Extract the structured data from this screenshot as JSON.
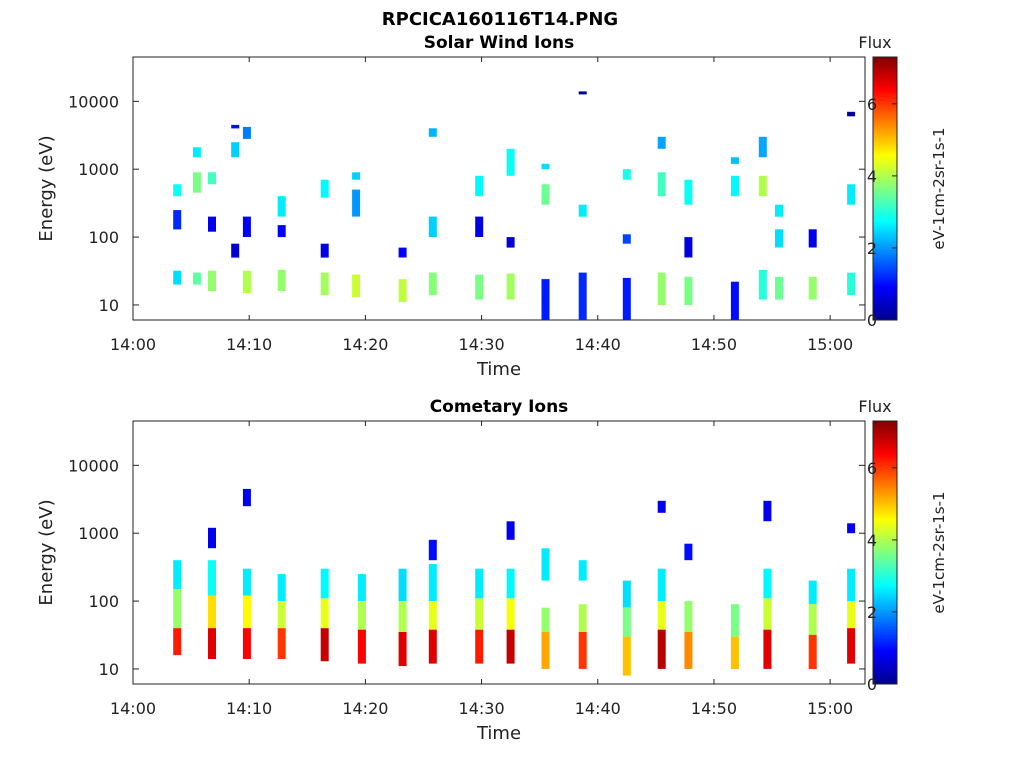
{
  "figure": {
    "title": "RPCICA160116T14.PNG"
  },
  "chart_data": [
    {
      "type": "heatmap",
      "title": "Solar Wind Ions",
      "xlabel": "Time",
      "ylabel": "Energy (eV)",
      "yscale": "log",
      "xlim": [
        "14:00",
        "15:03"
      ],
      "ylim": [
        6,
        45000
      ],
      "x_ticks": [
        "14:00",
        "14:10",
        "14:20",
        "14:30",
        "14:40",
        "14:50",
        "15:00"
      ],
      "y_ticks": [
        "10",
        "100",
        "1000",
        "10000"
      ],
      "colorbar": {
        "label": "Flux",
        "unit": "eV-1cm-2sr-1s-1",
        "ticks": [
          "0",
          "2",
          "4",
          "6"
        ],
        "range": [
          0,
          7.3
        ],
        "colormap": "jet"
      },
      "columns": [
        {
          "t": "14:03.8",
          "cells": [
            [
              20,
              32,
              2.5
            ],
            [
              130,
              250,
              1.2
            ],
            [
              400,
              600,
              2.8
            ]
          ]
        },
        {
          "t": "14:05.5",
          "cells": [
            [
              450,
              900,
              3.6
            ],
            [
              1500,
              2100,
              2.6
            ],
            [
              20,
              30,
              3.4
            ]
          ]
        },
        {
          "t": "14:06.8",
          "cells": [
            [
              16,
              32,
              3.8
            ],
            [
              120,
              200,
              0.8
            ],
            [
              600,
              900,
              3.2
            ]
          ]
        },
        {
          "t": "14:08.8",
          "cells": [
            [
              1500,
              2500,
              2.4
            ],
            [
              4000,
              4500,
              1.0
            ],
            [
              50,
              80,
              0.6
            ]
          ]
        },
        {
          "t": "14:09.8",
          "cells": [
            [
              15,
              32,
              4.0
            ],
            [
              100,
              200,
              0.9
            ],
            [
              2800,
              4200,
              1.8
            ]
          ]
        },
        {
          "t": "14:12.8",
          "cells": [
            [
              16,
              33,
              3.8
            ],
            [
              200,
              400,
              2.6
            ],
            [
              100,
              150,
              0.9
            ]
          ]
        },
        {
          "t": "14:16.5",
          "cells": [
            [
              14,
              30,
              3.9
            ],
            [
              50,
              80,
              0.7
            ],
            [
              380,
              700,
              2.7
            ]
          ]
        },
        {
          "t": "14:19.2",
          "cells": [
            [
              13,
              28,
              4.2
            ],
            [
              200,
              500,
              2.0
            ],
            [
              700,
              900,
              2.4
            ]
          ]
        },
        {
          "t": "14:23.2",
          "cells": [
            [
              11,
              24,
              4.1
            ],
            [
              50,
              70,
              0.9
            ]
          ]
        },
        {
          "t": "14:25.8",
          "cells": [
            [
              14,
              30,
              3.7
            ],
            [
              3000,
              4000,
              2.2
            ],
            [
              100,
              200,
              2.4
            ]
          ]
        },
        {
          "t": "14:29.8",
          "cells": [
            [
              12,
              28,
              3.6
            ],
            [
              100,
              200,
              0.7
            ],
            [
              400,
              800,
              2.7
            ]
          ]
        },
        {
          "t": "14:32.5",
          "cells": [
            [
              12,
              29,
              3.9
            ],
            [
              800,
              2000,
              2.8
            ],
            [
              70,
              100,
              0.6
            ]
          ]
        },
        {
          "t": "14:35.5",
          "cells": [
            [
              6,
              24,
              1.1
            ],
            [
              300,
              600,
              3.5
            ],
            [
              1000,
              1200,
              2.5
            ]
          ]
        },
        {
          "t": "14:38.7",
          "cells": [
            [
              6,
              30,
              1.2
            ],
            [
              14000,
              14000,
              0.2
            ],
            [
              200,
              300,
              2.6
            ]
          ]
        },
        {
          "t": "14:42.5",
          "cells": [
            [
              6,
              25,
              1.1
            ],
            [
              80,
              110,
              1.4
            ],
            [
              700,
              1000,
              2.9
            ]
          ]
        },
        {
          "t": "14:45.5",
          "cells": [
            [
              10,
              30,
              3.8
            ],
            [
              2000,
              3000,
              2.1
            ],
            [
              400,
              900,
              3.2
            ]
          ]
        },
        {
          "t": "14:47.8",
          "cells": [
            [
              10,
              26,
              3.6
            ],
            [
              50,
              100,
              0.7
            ],
            [
              300,
              700,
              2.8
            ]
          ]
        },
        {
          "t": "14:51.8",
          "cells": [
            [
              6,
              22,
              1.0
            ],
            [
              400,
              800,
              2.7
            ],
            [
              1200,
              1500,
              2.3
            ]
          ]
        },
        {
          "t": "14:54.2",
          "cells": [
            [
              12,
              33,
              3.0
            ],
            [
              1500,
              3000,
              2.1
            ],
            [
              400,
              800,
              4.0
            ]
          ]
        },
        {
          "t": "14:55.6",
          "cells": [
            [
              12,
              26,
              3.5
            ],
            [
              70,
              130,
              2.5
            ],
            [
              200,
              300,
              2.6
            ]
          ]
        },
        {
          "t": "14:58.5",
          "cells": [
            [
              12,
              26,
              3.8
            ],
            [
              70,
              130,
              0.8
            ]
          ]
        },
        {
          "t": "15:01.8",
          "cells": [
            [
              14,
              30,
              3.0
            ],
            [
              300,
              600,
              2.6
            ],
            [
              6000,
              7000,
              0.2
            ]
          ]
        }
      ]
    },
    {
      "type": "heatmap",
      "title": "Cometary Ions",
      "xlabel": "Time",
      "ylabel": "Energy (eV)",
      "yscale": "log",
      "xlim": [
        "14:00",
        "15:03"
      ],
      "ylim": [
        6,
        45000
      ],
      "x_ticks": [
        "14:00",
        "14:10",
        "14:20",
        "14:30",
        "14:40",
        "14:50",
        "15:00"
      ],
      "y_ticks": [
        "10",
        "100",
        "1000",
        "10000"
      ],
      "colorbar": {
        "label": "Flux",
        "unit": "eV-1cm-2sr-1s-1",
        "ticks": [
          "0",
          "2",
          "4",
          "6"
        ],
        "range": [
          0,
          7.3
        ],
        "colormap": "jet"
      },
      "columns": [
        {
          "t": "14:03.8",
          "cells": [
            [
              16,
              40,
              6.2
            ],
            [
              40,
              150,
              3.8
            ],
            [
              150,
              400,
              2.6
            ]
          ]
        },
        {
          "t": "14:06.8",
          "cells": [
            [
              14,
              40,
              6.6
            ],
            [
              40,
              120,
              4.8
            ],
            [
              120,
              400,
              2.8
            ],
            [
              600,
              1200,
              0.8
            ]
          ]
        },
        {
          "t": "14:09.8",
          "cells": [
            [
              14,
              40,
              6.4
            ],
            [
              40,
              120,
              4.6
            ],
            [
              120,
              300,
              2.6
            ],
            [
              2500,
              4500,
              0.8
            ]
          ]
        },
        {
          "t": "14:12.8",
          "cells": [
            [
              14,
              40,
              6.0
            ],
            [
              40,
              100,
              4.2
            ],
            [
              100,
              250,
              2.6
            ]
          ]
        },
        {
          "t": "14:16.5",
          "cells": [
            [
              13,
              40,
              6.8
            ],
            [
              40,
              110,
              4.4
            ],
            [
              110,
              300,
              2.7
            ]
          ]
        },
        {
          "t": "14:19.7",
          "cells": [
            [
              12,
              38,
              6.4
            ],
            [
              38,
              100,
              4.0
            ],
            [
              100,
              250,
              2.6
            ]
          ]
        },
        {
          "t": "14:23.2",
          "cells": [
            [
              11,
              35,
              6.6
            ],
            [
              35,
              100,
              4.0
            ],
            [
              100,
              300,
              2.5
            ]
          ]
        },
        {
          "t": "14:25.8",
          "cells": [
            [
              12,
              38,
              6.6
            ],
            [
              38,
              100,
              4.4
            ],
            [
              100,
              350,
              2.6
            ],
            [
              400,
              800,
              1.0
            ]
          ]
        },
        {
          "t": "14:29.8",
          "cells": [
            [
              12,
              38,
              6.2
            ],
            [
              38,
              110,
              4.2
            ],
            [
              110,
              300,
              2.6
            ]
          ]
        },
        {
          "t": "14:32.5",
          "cells": [
            [
              12,
              38,
              6.8
            ],
            [
              38,
              110,
              4.5
            ],
            [
              110,
              300,
              2.7
            ],
            [
              800,
              1500,
              0.8
            ]
          ]
        },
        {
          "t": "14:35.5",
          "cells": [
            [
              10,
              35,
              5.2
            ],
            [
              35,
              80,
              3.8
            ],
            [
              200,
              600,
              2.6
            ]
          ]
        },
        {
          "t": "14:38.7",
          "cells": [
            [
              10,
              35,
              6.0
            ],
            [
              35,
              90,
              4.0
            ],
            [
              200,
              400,
              2.6
            ]
          ]
        },
        {
          "t": "14:42.5",
          "cells": [
            [
              8,
              30,
              5.0
            ],
            [
              30,
              80,
              3.6
            ],
            [
              80,
              200,
              2.5
            ]
          ]
        },
        {
          "t": "14:45.5",
          "cells": [
            [
              10,
              38,
              6.9
            ],
            [
              38,
              100,
              4.4
            ],
            [
              100,
              300,
              2.6
            ],
            [
              2000,
              3000,
              0.8
            ]
          ]
        },
        {
          "t": "14:47.8",
          "cells": [
            [
              10,
              35,
              5.4
            ],
            [
              35,
              100,
              3.8
            ],
            [
              400,
              700,
              1.0
            ]
          ]
        },
        {
          "t": "14:51.8",
          "cells": [
            [
              10,
              30,
              5.0
            ],
            [
              30,
              90,
              3.6
            ]
          ]
        },
        {
          "t": "14:54.6",
          "cells": [
            [
              10,
              38,
              6.6
            ],
            [
              38,
              110,
              4.2
            ],
            [
              110,
              300,
              2.7
            ],
            [
              1500,
              3000,
              0.8
            ]
          ]
        },
        {
          "t": "14:58.5",
          "cells": [
            [
              10,
              32,
              6.0
            ],
            [
              32,
              90,
              4.0
            ],
            [
              90,
              200,
              2.6
            ]
          ]
        },
        {
          "t": "15:01.8",
          "cells": [
            [
              12,
              40,
              6.6
            ],
            [
              40,
              100,
              4.4
            ],
            [
              100,
              300,
              2.6
            ],
            [
              1000,
              1400,
              0.8
            ]
          ]
        }
      ]
    }
  ]
}
